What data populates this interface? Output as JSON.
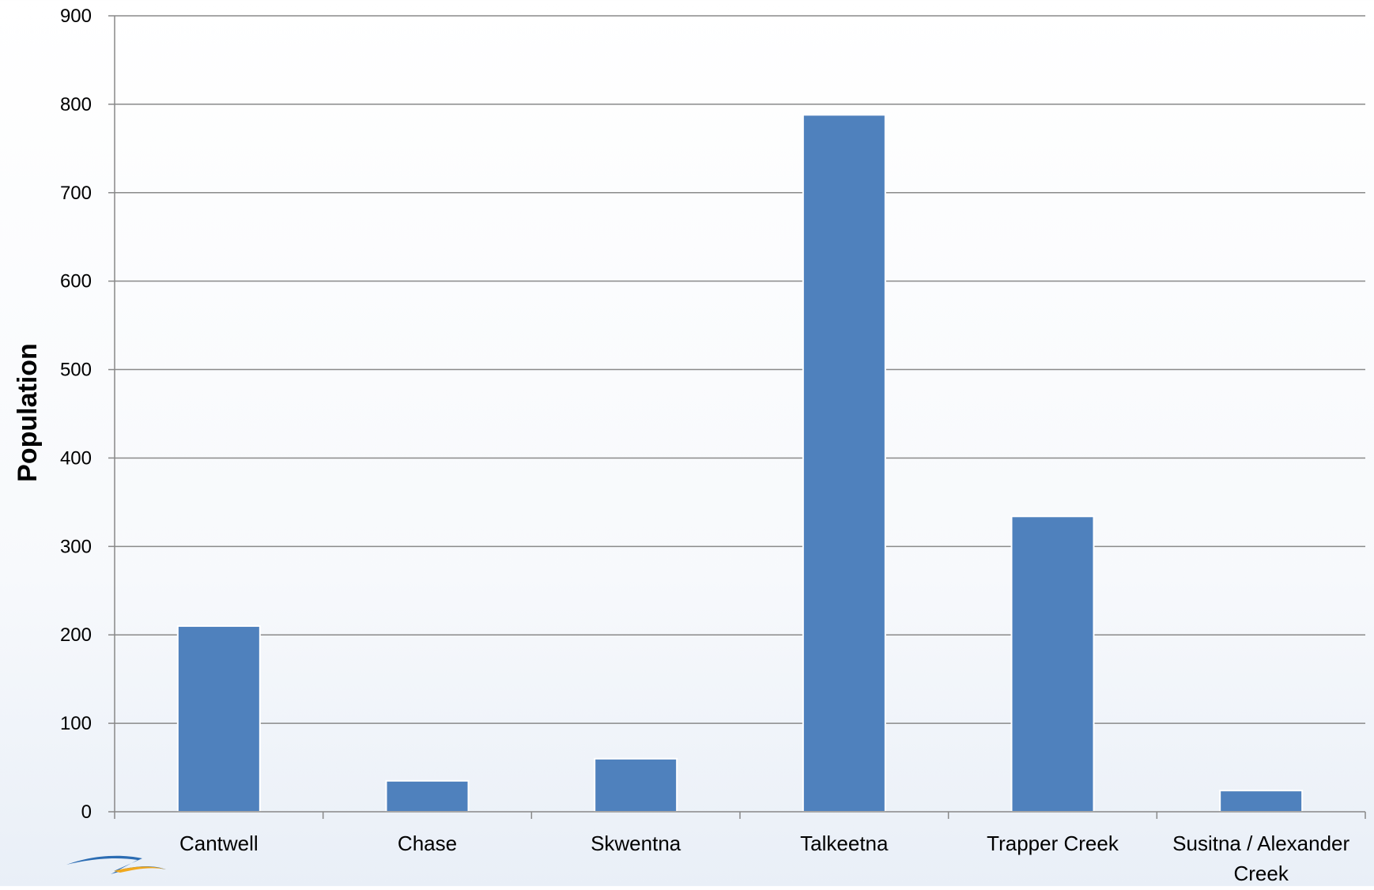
{
  "chart_data": {
    "type": "bar",
    "title": "",
    "xlabel": "",
    "ylabel": "Population",
    "ylim": [
      0,
      900
    ],
    "yticks": [
      0,
      100,
      200,
      300,
      400,
      500,
      600,
      700,
      800,
      900
    ],
    "grid": true,
    "legend": "none",
    "categories": [
      "Cantwell",
      "Chase",
      "Skwentna",
      "Talkeetna",
      "Trapper Creek",
      "Susitna / Alexander Creek"
    ],
    "values": [
      210,
      35,
      60,
      788,
      334,
      24
    ],
    "bar_color": "#4F81BD",
    "grid_color": "#8a8a8a"
  },
  "logo": {
    "icon": "swoosh-logo-icon"
  }
}
